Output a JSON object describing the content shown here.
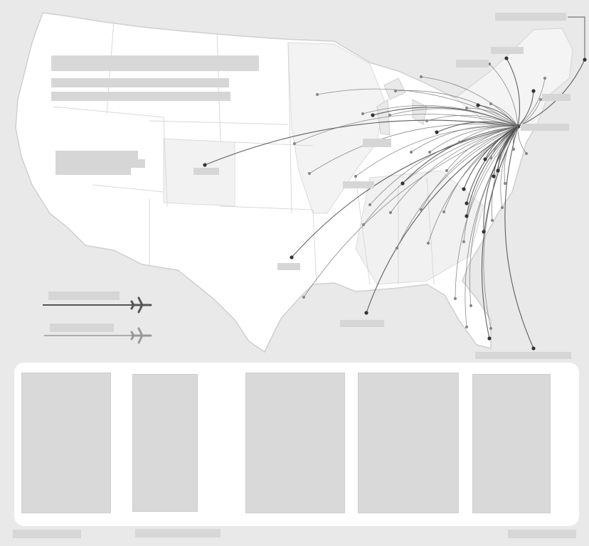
{
  "colors": {
    "background": "#e9e9e9",
    "land": "#ffffff",
    "land_highlight": "#f3f3f3",
    "border": "#cfcfcf",
    "route": "#777777",
    "route_dark": "#444444",
    "placeholder": "#d6d6d6"
  },
  "icons": {
    "legend_primary": "airplane-icon",
    "legend_secondary": "airplane-icon"
  },
  "thumbnails_count": 5
}
